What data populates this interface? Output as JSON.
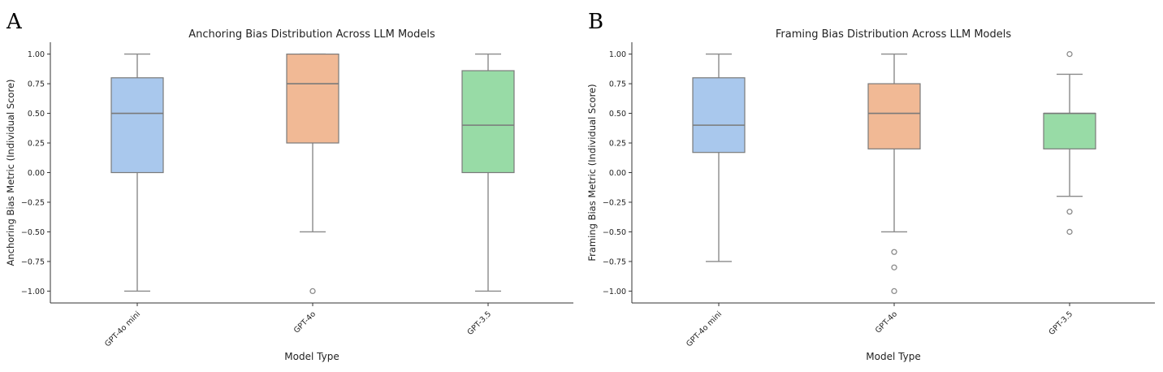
{
  "panels": [
    {
      "letter": "A"
    },
    {
      "letter": "B"
    }
  ],
  "chart_data": [
    {
      "type": "box",
      "title": "Anchoring Bias Distribution Across LLM Models",
      "xlabel": "Model Type",
      "ylabel": "Anchoring Bias Metric (Individual Score)",
      "ylim": [
        -1.1,
        1.1
      ],
      "yticks": [
        -1.0,
        -0.75,
        -0.5,
        -0.25,
        0.0,
        0.25,
        0.5,
        0.75,
        1.0
      ],
      "ytick_labels": [
        "−1.00",
        "−0.75",
        "−0.50",
        "−0.25",
        "0.00",
        "0.25",
        "0.50",
        "0.75",
        "1.00"
      ],
      "grid": false,
      "categories": [
        "GPT-4o mini",
        "GPT-4o",
        "GPT-3.5"
      ],
      "boxes": [
        {
          "category": "GPT-4o mini",
          "whisker_low": -1.0,
          "q1": 0.0,
          "median": 0.5,
          "q3": 0.8,
          "whisker_high": 1.0,
          "outliers": [],
          "color": "#a9c8ed"
        },
        {
          "category": "GPT-4o",
          "whisker_low": -0.5,
          "q1": 0.25,
          "median": 0.75,
          "q3": 1.0,
          "whisker_high": 1.0,
          "outliers": [
            -1.0
          ],
          "color": "#f1b995"
        },
        {
          "category": "GPT-3.5",
          "whisker_low": -1.0,
          "q1": 0.0,
          "median": 0.4,
          "q3": 0.86,
          "whisker_high": 1.0,
          "outliers": [],
          "color": "#98dba6"
        }
      ]
    },
    {
      "type": "box",
      "title": "Framing Bias Distribution Across LLM Models",
      "xlabel": "Model Type",
      "ylabel": "Framing Bias Metric (Individual Score)",
      "ylim": [
        -1.1,
        1.1
      ],
      "yticks": [
        -1.0,
        -0.75,
        -0.5,
        -0.25,
        0.0,
        0.25,
        0.5,
        0.75,
        1.0
      ],
      "ytick_labels": [
        "−1.00",
        "−0.75",
        "−0.50",
        "−0.25",
        "0.00",
        "0.25",
        "0.50",
        "0.75",
        "1.00"
      ],
      "grid": false,
      "categories": [
        "GPT-4o mini",
        "GPT-4o",
        "GPT-3.5"
      ],
      "boxes": [
        {
          "category": "GPT-4o mini",
          "whisker_low": -0.75,
          "q1": 0.17,
          "median": 0.4,
          "q3": 0.8,
          "whisker_high": 1.0,
          "outliers": [],
          "color": "#a9c8ed"
        },
        {
          "category": "GPT-4o",
          "whisker_low": -0.5,
          "q1": 0.2,
          "median": 0.5,
          "q3": 0.75,
          "whisker_high": 1.0,
          "outliers": [
            -0.67,
            -0.8,
            -1.0
          ],
          "color": "#f1b995"
        },
        {
          "category": "GPT-3.5",
          "whisker_low": -0.2,
          "q1": 0.2,
          "median": 0.5,
          "q3": 0.5,
          "whisker_high": 0.83,
          "outliers": [
            1.0,
            -0.33,
            -0.5
          ],
          "color": "#98dba6"
        }
      ]
    }
  ]
}
